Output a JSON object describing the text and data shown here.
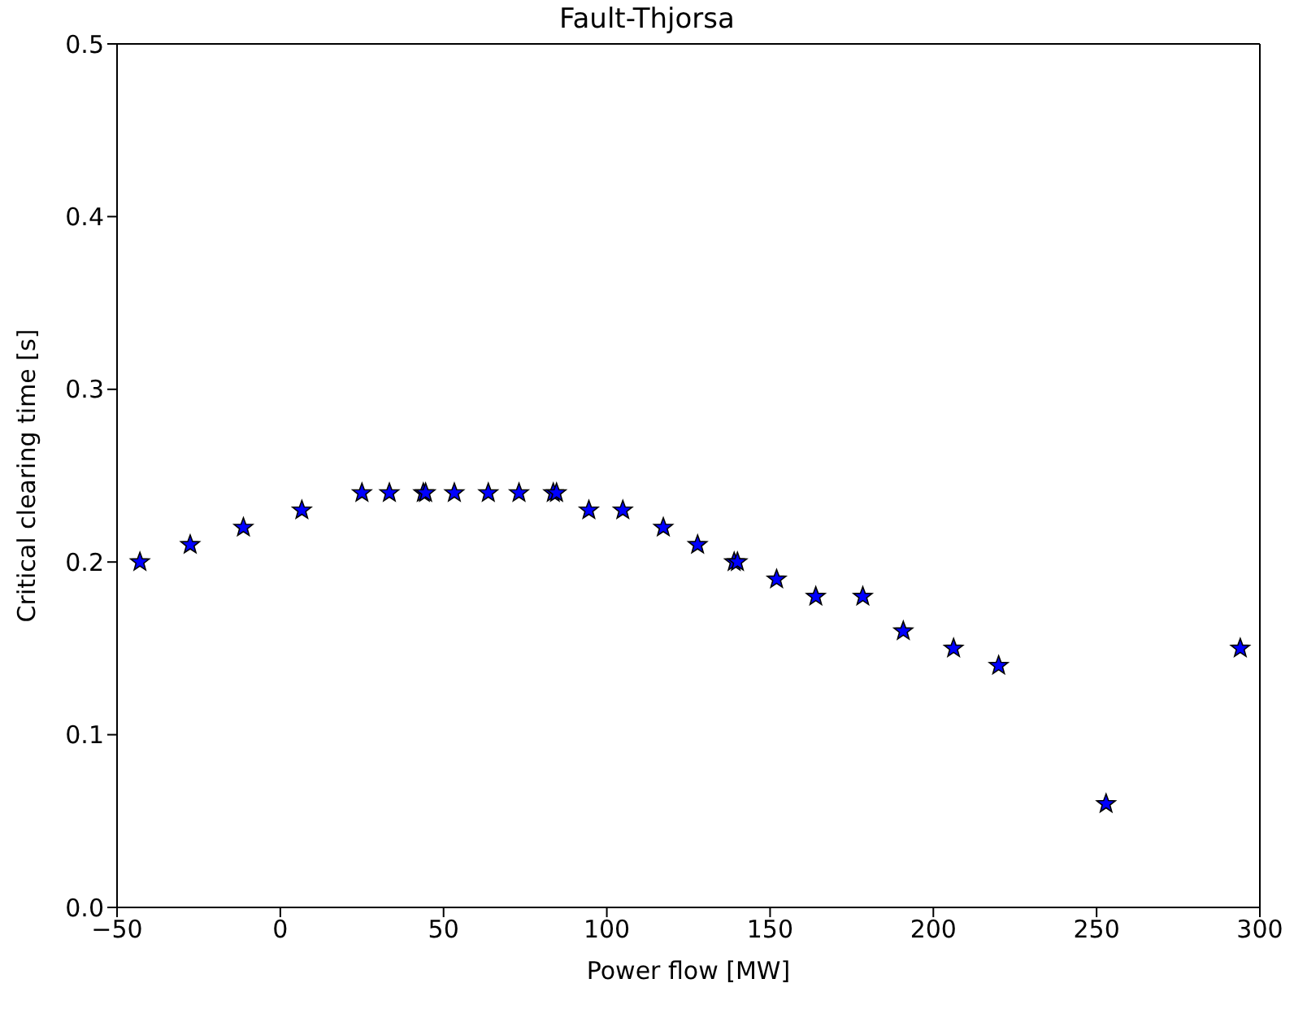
{
  "chart_data": {
    "type": "scatter",
    "title": "Fault-Thjorsa",
    "xlabel": "Power flow [MW]",
    "ylabel": "Critical clearing time [s]",
    "x": [
      -43,
      -27.6,
      -11.3,
      6.6,
      25,
      33.4,
      43.8,
      44.5,
      53.3,
      63.7,
      73.1,
      83.6,
      84.6,
      94.5,
      104.9,
      117.3,
      127.8,
      139,
      140,
      152,
      164,
      178.4,
      190.8,
      206.2,
      220,
      252.9,
      294
    ],
    "series": [
      {
        "color": "#0000ff",
        "values": [
          0.2,
          0.21,
          0.22,
          0.23,
          0.24,
          0.24,
          0.24,
          0.24,
          0.24,
          0.24,
          0.24,
          0.24,
          0.24,
          0.23,
          0.23,
          0.22,
          0.21,
          0.2,
          0.2,
          0.19,
          0.18,
          0.18,
          0.16,
          0.15,
          0.14,
          0.06,
          0.15
        ]
      }
    ],
    "xlim": [
      -50,
      300
    ],
    "xticks": [
      {
        "value": -50,
        "label": "−50"
      },
      0,
      50,
      100,
      150,
      200,
      250,
      300
    ],
    "ylim": [
      0,
      0.5
    ],
    "yticks": [
      {
        "value": 0,
        "label": "0.0"
      },
      0.1,
      0.2,
      0.3,
      0.4,
      0.5
    ],
    "marker": "star",
    "grid": false,
    "legend": false
  }
}
